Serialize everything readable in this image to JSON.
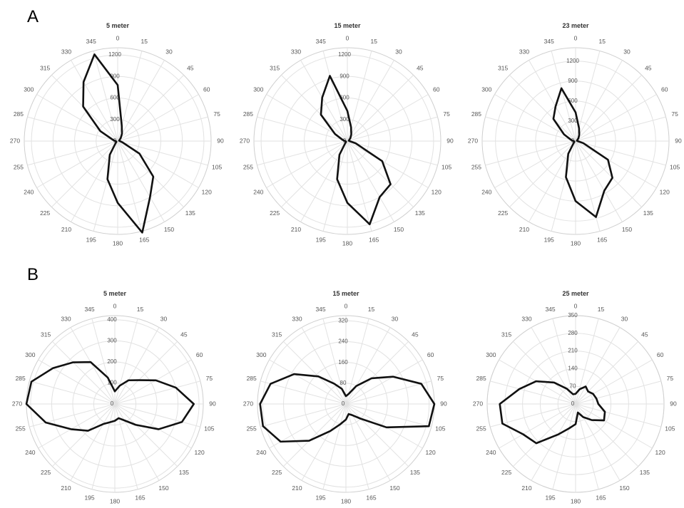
{
  "panels": [
    {
      "label": "A"
    },
    {
      "label": "B"
    }
  ],
  "chart_data": [
    {
      "type": "radar",
      "panel": "A",
      "title": "5 meter",
      "angles": [
        0,
        15,
        30,
        45,
        60,
        75,
        90,
        105,
        120,
        135,
        150,
        165,
        180,
        195,
        210,
        225,
        240,
        255,
        270,
        285,
        300,
        315,
        330,
        345
      ],
      "radial_ticks": [
        "0",
        "300",
        "600",
        "900",
        "1200"
      ],
      "rmax": 1300,
      "values": [
        780,
        220,
        120,
        60,
        30,
        20,
        30,
        70,
        350,
        700,
        900,
        1320,
        860,
        550,
        220,
        40,
        20,
        20,
        30,
        70,
        280,
        680,
        950,
        1250
      ]
    },
    {
      "type": "radar",
      "panel": "A",
      "title": "15 meter",
      "angles": [
        0,
        15,
        30,
        45,
        60,
        75,
        90,
        105,
        120,
        135,
        150,
        165,
        180,
        195,
        210,
        225,
        240,
        255,
        270,
        285,
        300,
        315,
        330,
        345
      ],
      "radial_ticks": [
        "0",
        "300",
        "600",
        "900",
        "1200"
      ],
      "rmax": 1300,
      "values": [
        420,
        200,
        110,
        60,
        30,
        20,
        30,
        120,
        560,
        850,
        900,
        1200,
        860,
        550,
        220,
        40,
        20,
        20,
        30,
        70,
        200,
        520,
        700,
        940
      ]
    },
    {
      "type": "radar",
      "panel": "A",
      "title": "23 meter",
      "angles": [
        0,
        15,
        30,
        45,
        60,
        75,
        90,
        105,
        120,
        135,
        150,
        165,
        180,
        195,
        210,
        225,
        240,
        255,
        270,
        285,
        300,
        315,
        330,
        345
      ],
      "radial_ticks": [
        "0",
        "300",
        "600",
        "900",
        "1200"
      ],
      "rmax": 1400,
      "values": [
        430,
        200,
        110,
        60,
        30,
        20,
        30,
        120,
        560,
        780,
        860,
        1180,
        900,
        560,
        220,
        40,
        20,
        20,
        30,
        70,
        200,
        470,
        600,
        820
      ]
    },
    {
      "type": "radar",
      "panel": "B",
      "title": "5 meter",
      "angles": [
        0,
        15,
        30,
        45,
        60,
        75,
        90,
        105,
        120,
        135,
        150,
        165,
        180,
        195,
        210,
        225,
        240,
        255,
        270,
        285,
        300,
        315,
        330,
        345
      ],
      "radial_ticks": [
        "0",
        "100",
        "200",
        "300",
        "400"
      ],
      "rmax": 420,
      "values": [
        60,
        90,
        130,
        160,
        225,
        300,
        375,
        330,
        240,
        140,
        90,
        70,
        80,
        90,
        110,
        180,
        240,
        340,
        420,
        410,
        340,
        280,
        230,
        130
      ]
    },
    {
      "type": "radar",
      "panel": "B",
      "title": "15 meter",
      "angles": [
        0,
        15,
        30,
        45,
        60,
        75,
        90,
        105,
        120,
        135,
        150,
        165,
        180,
        195,
        210,
        225,
        240,
        255,
        270,
        285,
        300,
        315,
        330,
        345
      ],
      "radial_ticks": [
        "0",
        "80",
        "160",
        "240",
        "320"
      ],
      "rmax": 340,
      "values": [
        30,
        40,
        80,
        140,
        210,
        300,
        340,
        330,
        180,
        80,
        50,
        40,
        60,
        80,
        120,
        200,
        290,
        330,
        330,
        300,
        230,
        150,
        90,
        60
      ]
    },
    {
      "type": "radar",
      "panel": "B",
      "title": "25 meter",
      "angles": [
        0,
        15,
        30,
        45,
        60,
        75,
        90,
        105,
        120,
        135,
        150,
        165,
        180,
        195,
        210,
        225,
        240,
        255,
        270,
        285,
        300,
        315,
        330,
        345
      ],
      "radial_ticks": [
        "0",
        "70",
        "140",
        "210",
        "280",
        "350"
      ],
      "rmax": 350,
      "values": [
        40,
        60,
        80,
        70,
        80,
        85,
        90,
        120,
        130,
        90,
        60,
        35,
        80,
        100,
        140,
        220,
        240,
        300,
        300,
        230,
        180,
        120,
        70,
        40
      ]
    }
  ]
}
